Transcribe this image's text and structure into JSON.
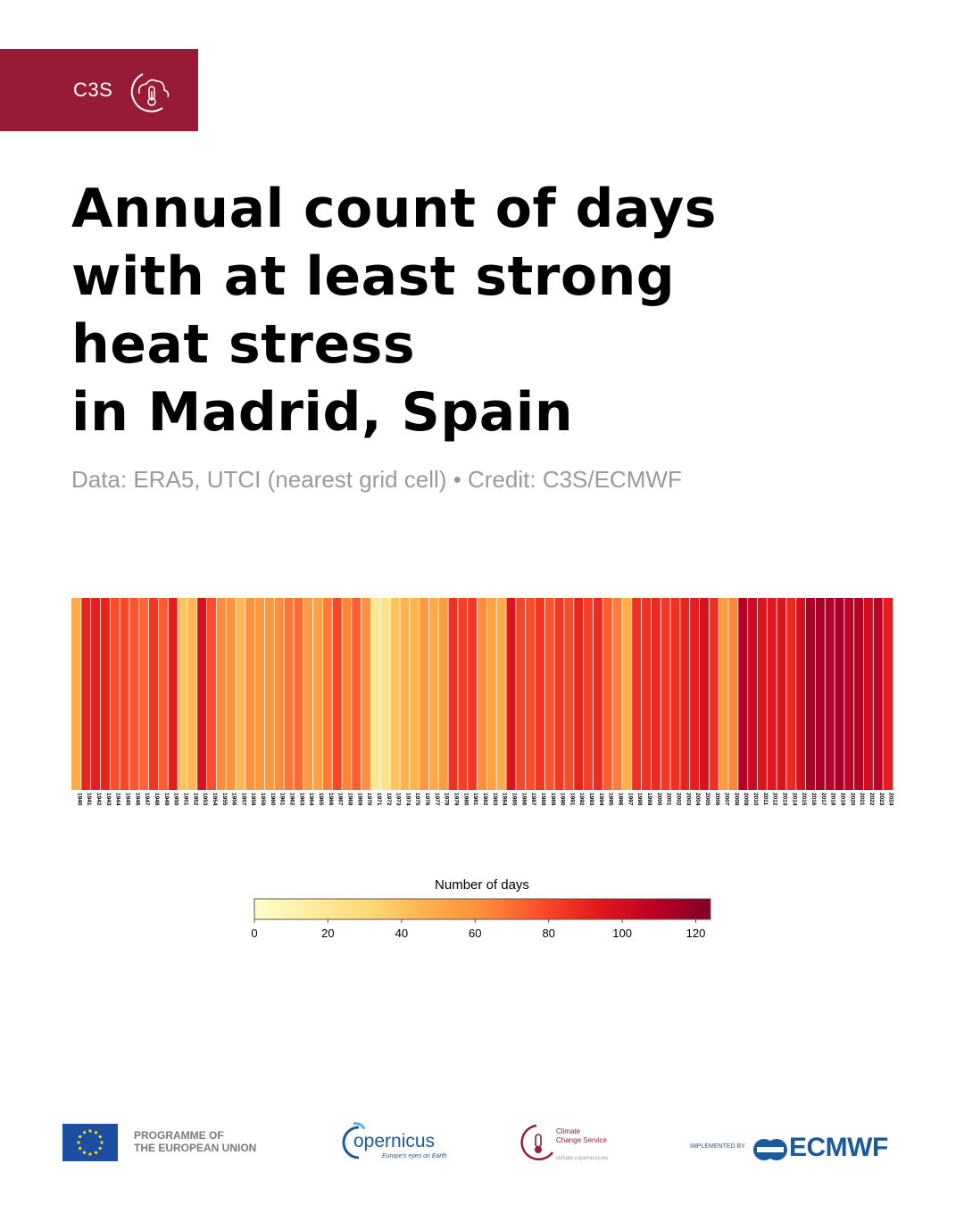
{
  "badge": {
    "text": "C3S",
    "icon": "cloud-thermometer-icon",
    "color": "#981b36"
  },
  "title_lines": [
    "Annual count of days",
    "with at least strong",
    "heat stress",
    "in Madrid, Spain"
  ],
  "subtitle": "Data: ERA5, UTCI (nearest grid cell) • Credit: C3S/ECMWF",
  "chart_data": {
    "type": "heatmap",
    "title": "Annual count of days with at least strong heat stress in Madrid, Spain",
    "x": [
      1940,
      1941,
      1942,
      1943,
      1944,
      1945,
      1946,
      1947,
      1948,
      1949,
      1950,
      1951,
      1952,
      1953,
      1954,
      1955,
      1956,
      1957,
      1958,
      1959,
      1960,
      1961,
      1962,
      1963,
      1964,
      1965,
      1966,
      1967,
      1968,
      1969,
      1970,
      1971,
      1972,
      1973,
      1974,
      1975,
      1976,
      1977,
      1978,
      1979,
      1980,
      1981,
      1982,
      1983,
      1984,
      1985,
      1986,
      1987,
      1988,
      1989,
      1990,
      1991,
      1992,
      1993,
      1994,
      1995,
      1996,
      1997,
      1998,
      1999,
      2000,
      2001,
      2002,
      2003,
      2004,
      2005,
      2006,
      2007,
      2008,
      2009,
      2010,
      2011,
      2012,
      2013,
      2014,
      2015,
      2016,
      2017,
      2018,
      2019,
      2020,
      2021,
      2022,
      2023,
      2024
    ],
    "values": [
      50,
      90,
      92,
      90,
      78,
      80,
      76,
      72,
      84,
      74,
      92,
      40,
      45,
      98,
      78,
      62,
      60,
      44,
      60,
      58,
      58,
      62,
      68,
      70,
      56,
      54,
      66,
      80,
      64,
      74,
      60,
      20,
      24,
      40,
      46,
      46,
      58,
      50,
      56,
      86,
      82,
      84,
      62,
      54,
      50,
      96,
      80,
      78,
      84,
      76,
      84,
      78,
      90,
      82,
      88,
      74,
      66,
      48,
      86,
      86,
      88,
      84,
      86,
      90,
      92,
      98,
      86,
      56,
      64,
      110,
      102,
      96,
      94,
      96,
      88,
      98,
      112,
      114,
      110,
      114,
      108,
      110,
      100,
      108,
      92
    ],
    "legend_title": "Number of days",
    "colorbar_ticks": [
      0,
      20,
      40,
      60,
      80,
      100,
      120
    ],
    "vmin": 0,
    "vmax": 124,
    "colormap": [
      "#ffffcc",
      "#ffeda0",
      "#fed976",
      "#feb24c",
      "#fd8d3c",
      "#fc4e2a",
      "#e31a1c",
      "#bd0026",
      "#800026"
    ]
  },
  "footer": {
    "eu_program": [
      "PROGRAMME OF",
      "THE EUROPEAN UNION"
    ],
    "eu_flag_icon": "eu-flag-icon",
    "copernicus": "opernicus",
    "copernicus_tag": "Europe's eyes on Earth",
    "c3s_name": [
      "Climate",
      "Change Service"
    ],
    "c3s_url": "climate.copernicus.eu",
    "implemented_by": "IMPLEMENTED BY",
    "ecmwf": "ECMWF"
  }
}
